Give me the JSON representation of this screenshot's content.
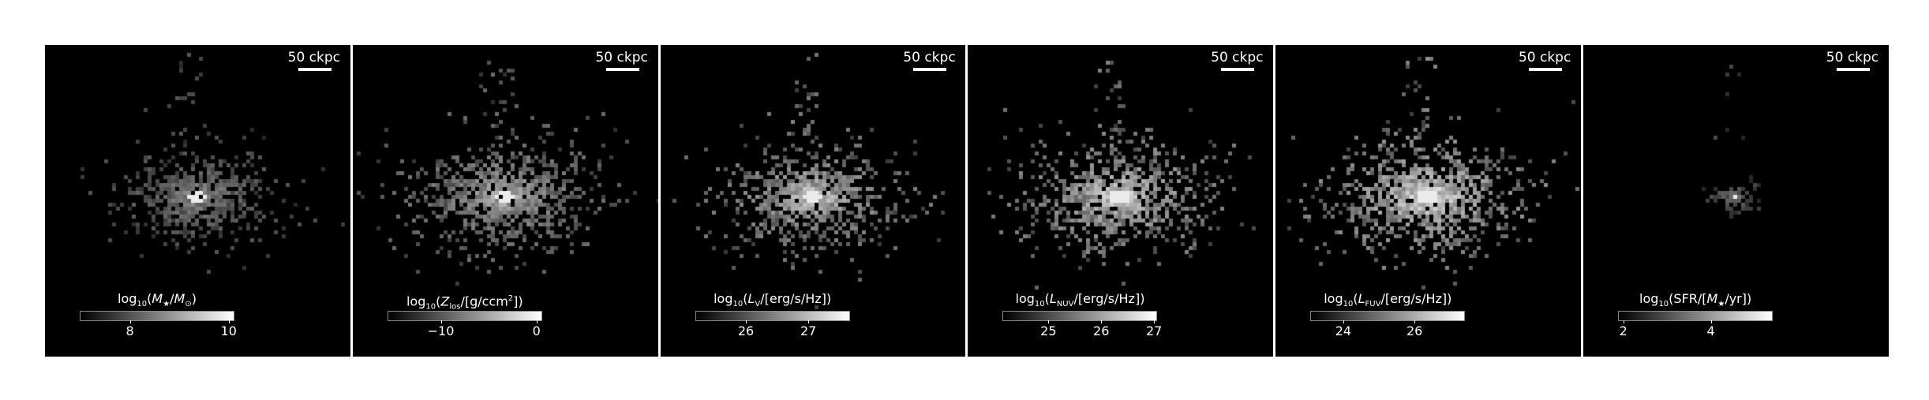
{
  "panels": [
    {
      "scale_label": "50 ckpc",
      "colorbar": {
        "prefix": "log",
        "sub": "10",
        "open": "(",
        "var": "M",
        "var_sub": "★",
        "mid": "/",
        "var2": "M",
        "var2_sub": "⊙",
        "close": ")",
        "ticks": [
          {
            "label": "8",
            "value": 8
          },
          {
            "label": "10",
            "value": 10
          }
        ],
        "range": [
          7.0,
          10.1
        ]
      },
      "image": {
        "spread": 1.0,
        "brightness": 0.6,
        "core": 1.0,
        "seed": 11
      }
    },
    {
      "scale_label": "50 ckpc",
      "colorbar": {
        "prefix": "log",
        "sub": "10",
        "open": "(",
        "var": "Z",
        "var_sub": "los",
        "mid": "/[g/ccm",
        "sup": "2",
        "close": "])",
        "ticks": [
          {
            "label": "−10",
            "value": -10
          },
          {
            "label": "0",
            "value": 0
          }
        ],
        "range": [
          -15.5,
          0.5
        ]
      },
      "image": {
        "spread": 1.25,
        "brightness": 0.75,
        "core": 0.9,
        "seed": 23
      }
    },
    {
      "scale_label": "50 ckpc",
      "colorbar": {
        "prefix": "log",
        "sub": "10",
        "open": "(",
        "var": "L",
        "var_sub": "V",
        "mid": "/[erg/s/Hz])",
        "close": "",
        "ticks": [
          {
            "label": "26",
            "value": 26
          },
          {
            "label": "27",
            "value": 27
          }
        ],
        "range": [
          25.2,
          27.65
        ]
      },
      "image": {
        "spread": 1.15,
        "brightness": 0.85,
        "core": 1.0,
        "seed": 37
      }
    },
    {
      "scale_label": "50 ckpc",
      "colorbar": {
        "prefix": "log",
        "sub": "10",
        "open": "(",
        "var": "L",
        "var_sub": "NUV",
        "mid": "/[erg/s/Hz])",
        "close": "",
        "ticks": [
          {
            "label": "25",
            "value": 25
          },
          {
            "label": "26",
            "value": 26
          },
          {
            "label": "27",
            "value": 27
          }
        ],
        "range": [
          24.15,
          27.05
        ]
      },
      "image": {
        "spread": 1.2,
        "brightness": 0.9,
        "core": 1.0,
        "seed": 51
      }
    },
    {
      "scale_label": "50 ckpc",
      "colorbar": {
        "prefix": "log",
        "sub": "10",
        "open": "(",
        "var": "L",
        "var_sub": "FUV",
        "mid": "/[erg/s/Hz])",
        "close": "",
        "ticks": [
          {
            "label": "24",
            "value": 24
          },
          {
            "label": "26",
            "value": 26
          }
        ],
        "range": [
          23.1,
          27.4
        ]
      },
      "image": {
        "spread": 1.25,
        "brightness": 0.95,
        "core": 1.0,
        "seed": 67
      }
    },
    {
      "scale_label": "50 ckpc",
      "colorbar": {
        "prefix": "log",
        "sub": "10",
        "open": "(SFR/[",
        "var": "M",
        "var_sub": "★",
        "mid": "/yr])",
        "close": "",
        "ticks": [
          {
            "label": "2",
            "value": 2
          },
          {
            "label": "4",
            "value": 4
          }
        ],
        "range": [
          1.9,
          5.4
        ]
      },
      "image": {
        "spread": 0.35,
        "brightness": 0.5,
        "core": 0.9,
        "seed": 83
      }
    }
  ]
}
